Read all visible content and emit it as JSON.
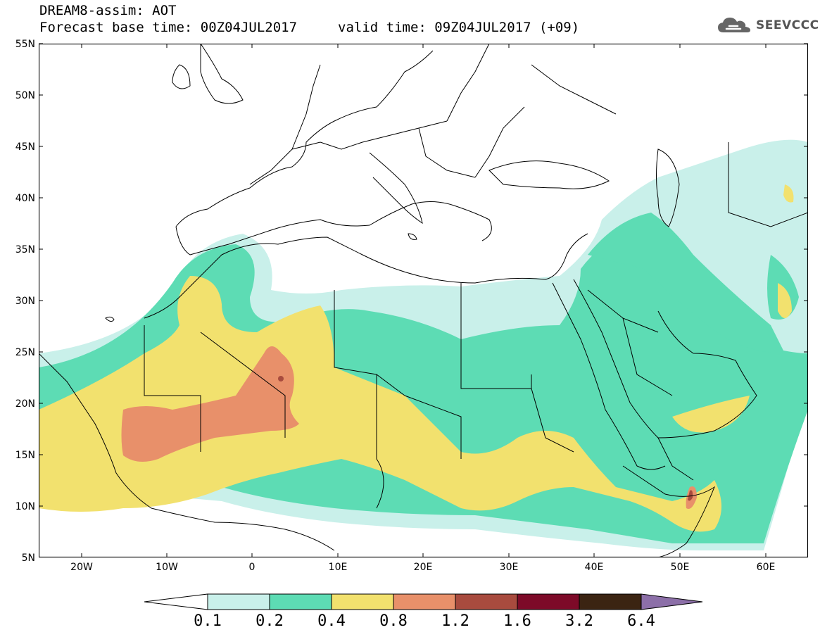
{
  "header": {
    "title": "DREAM8-assim: AOT",
    "base_time": "Forecast base time: 00Z04JUL2017",
    "valid_time": "valid time: 09Z04JUL2017 (+09)"
  },
  "logo": {
    "text": "SEEVCCC",
    "icon": "cloud-icon"
  },
  "map": {
    "lat_labels": [
      "55N",
      "50N",
      "45N",
      "40N",
      "35N",
      "30N",
      "25N",
      "20N",
      "15N",
      "10N",
      "5N"
    ],
    "lon_labels": [
      "20W",
      "10W",
      "0",
      "10E",
      "20E",
      "30E",
      "40E",
      "50E",
      "60E"
    ],
    "lat_range": [
      5,
      55
    ],
    "lon_range": [
      -25,
      65
    ]
  },
  "legend": {
    "levels": [
      "0.1",
      "0.2",
      "0.4",
      "0.8",
      "1.2",
      "1.6",
      "3.2",
      "6.4"
    ],
    "colors": [
      "#ffffff",
      "#c9f0ea",
      "#5ddcb4",
      "#f2e16e",
      "#e8906a",
      "#a84b3e",
      "#7d0a28",
      "#3b2412",
      "#8c6fa8"
    ]
  }
}
